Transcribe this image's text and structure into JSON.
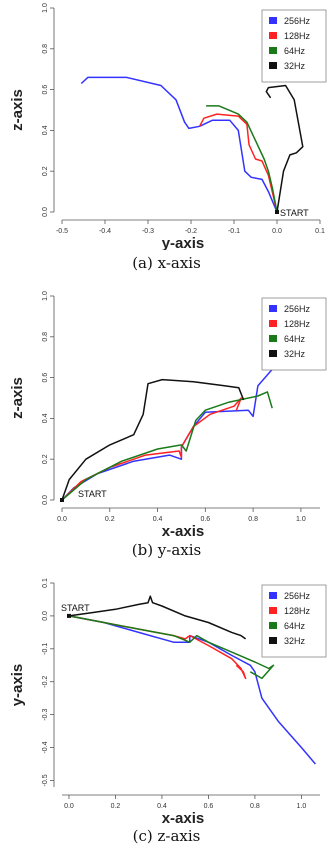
{
  "chart_data": [
    {
      "type": "line",
      "caption": "(a) x-axis",
      "xlabel": "y-axis",
      "ylabel": "z-axis",
      "xlim": [
        -0.5,
        0.1
      ],
      "ylim": [
        0.0,
        1.0
      ],
      "xticks": [
        "-0.5",
        "-0.4",
        "-0.3",
        "-0.2",
        "-0.1",
        "0.0",
        "0.1"
      ],
      "yticks": [
        "0.0",
        "0.2",
        "0.4",
        "0.6",
        "0.8",
        "1.0"
      ],
      "legend_position": "top-right",
      "annotation": {
        "text": "START",
        "x": 0.0,
        "y": 0.0
      },
      "series": [
        {
          "name": "256Hz",
          "color": "#3333ff",
          "x": [
            -0.455,
            -0.44,
            -0.35,
            -0.27,
            -0.235,
            -0.215,
            -0.205,
            -0.18,
            -0.15,
            -0.11,
            -0.09,
            -0.075,
            -0.06,
            -0.035,
            -0.02,
            0.0
          ],
          "y": [
            0.63,
            0.66,
            0.66,
            0.62,
            0.55,
            0.44,
            0.41,
            0.42,
            0.45,
            0.45,
            0.4,
            0.2,
            0.17,
            0.16,
            0.1,
            0.0
          ]
        },
        {
          "name": "128Hz",
          "color": "#ff2222",
          "x": [
            -0.18,
            -0.17,
            -0.14,
            -0.09,
            -0.07,
            -0.065,
            -0.05,
            -0.035,
            -0.02,
            0.0
          ],
          "y": [
            0.42,
            0.46,
            0.48,
            0.47,
            0.43,
            0.33,
            0.26,
            0.25,
            0.18,
            0.0
          ]
        },
        {
          "name": "64Hz",
          "color": "#1a7a1a",
          "x": [
            -0.165,
            -0.135,
            -0.09,
            -0.07,
            -0.05,
            -0.03,
            -0.02,
            -0.01,
            0.0
          ],
          "y": [
            0.52,
            0.52,
            0.48,
            0.44,
            0.35,
            0.26,
            0.2,
            0.11,
            0.0
          ]
        },
        {
          "name": "32Hz",
          "color": "#111111",
          "x": [
            -0.015,
            -0.025,
            -0.02,
            0.02,
            0.04,
            0.06,
            0.045,
            0.03,
            0.015,
            0.0
          ],
          "y": [
            0.56,
            0.59,
            0.61,
            0.62,
            0.55,
            0.32,
            0.29,
            0.28,
            0.2,
            0.0
          ]
        }
      ]
    },
    {
      "type": "line",
      "caption": "(b) y-axis",
      "xlabel": "x-axis",
      "ylabel": "z-axis",
      "xlim": [
        0.0,
        1.08
      ],
      "ylim": [
        0.0,
        1.0
      ],
      "xticks": [
        "0.0",
        "0.2",
        "0.4",
        "0.6",
        "0.8",
        "1.0"
      ],
      "yticks": [
        "0.0",
        "0.2",
        "0.4",
        "0.6",
        "0.8",
        "1.0"
      ],
      "legend_position": "top-right",
      "annotation": {
        "text": "START",
        "x": 0.0,
        "y": 0.0
      },
      "series": [
        {
          "name": "256Hz",
          "color": "#3333ff",
          "x": [
            0.0,
            0.05,
            0.15,
            0.3,
            0.45,
            0.5,
            0.5,
            0.55,
            0.6,
            0.78,
            0.8,
            0.82,
            0.88,
            1.0,
            1.06
          ],
          "y": [
            0.0,
            0.06,
            0.13,
            0.19,
            0.22,
            0.2,
            0.26,
            0.36,
            0.43,
            0.44,
            0.41,
            0.56,
            0.64,
            0.67,
            0.66
          ]
        },
        {
          "name": "128Hz",
          "color": "#ff2222",
          "x": [
            0.0,
            0.08,
            0.2,
            0.35,
            0.49,
            0.5,
            0.5,
            0.55,
            0.62,
            0.72,
            0.75,
            0.73
          ],
          "y": [
            0.0,
            0.09,
            0.16,
            0.22,
            0.24,
            0.21,
            0.26,
            0.36,
            0.42,
            0.46,
            0.5,
            0.44
          ]
        },
        {
          "name": "64Hz",
          "color": "#1a7a1a",
          "x": [
            0.0,
            0.1,
            0.25,
            0.4,
            0.5,
            0.52,
            0.56,
            0.6,
            0.7,
            0.82,
            0.86,
            0.88
          ],
          "y": [
            0.0,
            0.1,
            0.19,
            0.25,
            0.27,
            0.24,
            0.39,
            0.44,
            0.48,
            0.51,
            0.53,
            0.45
          ]
        },
        {
          "name": "32Hz",
          "color": "#111111",
          "x": [
            0.0,
            0.03,
            0.1,
            0.2,
            0.3,
            0.34,
            0.36,
            0.42,
            0.55,
            0.68,
            0.74,
            0.76
          ],
          "y": [
            0.0,
            0.1,
            0.2,
            0.27,
            0.32,
            0.42,
            0.57,
            0.59,
            0.58,
            0.56,
            0.55,
            0.49
          ]
        }
      ]
    },
    {
      "type": "line",
      "caption": "(c) z-axis",
      "xlabel": "x-axis",
      "ylabel": "y-axis",
      "xlim": [
        -0.03,
        1.08
      ],
      "ylim": [
        -0.52,
        0.1
      ],
      "xticks": [
        "0.0",
        "0.2",
        "0.4",
        "0.6",
        "0.8",
        "1.0"
      ],
      "yticks": [
        "-0.5",
        "-0.4",
        "-0.3",
        "-0.2",
        "-0.1",
        "0.0",
        "0.1"
      ],
      "legend_position": "top-right",
      "annotation": {
        "text": "START",
        "x": 0.0,
        "y": 0.0
      },
      "series": [
        {
          "name": "256Hz",
          "color": "#3333ff",
          "x": [
            0.0,
            0.15,
            0.3,
            0.45,
            0.52,
            0.52,
            0.6,
            0.7,
            0.78,
            0.8,
            0.83,
            0.9,
            1.0,
            1.06
          ],
          "y": [
            0.0,
            -0.02,
            -0.05,
            -0.08,
            -0.08,
            -0.06,
            -0.08,
            -0.12,
            -0.15,
            -0.17,
            -0.25,
            -0.32,
            -0.4,
            -0.45
          ]
        },
        {
          "name": "128Hz",
          "color": "#ff2222",
          "x": [
            0.0,
            0.15,
            0.3,
            0.45,
            0.5,
            0.52,
            0.6,
            0.7,
            0.74,
            0.76,
            0.75,
            0.72
          ],
          "y": [
            0.0,
            -0.02,
            -0.04,
            -0.06,
            -0.07,
            -0.06,
            -0.09,
            -0.13,
            -0.16,
            -0.19,
            -0.17,
            -0.15
          ]
        },
        {
          "name": "64Hz",
          "color": "#1a7a1a",
          "x": [
            0.0,
            0.15,
            0.3,
            0.45,
            0.52,
            0.55,
            0.6,
            0.7,
            0.8,
            0.86,
            0.88,
            0.83,
            0.78
          ],
          "y": [
            0.0,
            -0.02,
            -0.04,
            -0.06,
            -0.08,
            -0.06,
            -0.08,
            -0.11,
            -0.14,
            -0.16,
            -0.15,
            -0.19,
            -0.17
          ]
        },
        {
          "name": "32Hz",
          "color": "#111111",
          "x": [
            0.0,
            0.1,
            0.2,
            0.3,
            0.34,
            0.35,
            0.36,
            0.4,
            0.5,
            0.6,
            0.7,
            0.74,
            0.76
          ],
          "y": [
            0.0,
            0.01,
            0.02,
            0.035,
            0.04,
            0.06,
            0.04,
            0.03,
            0.0,
            -0.02,
            -0.05,
            -0.06,
            -0.07
          ]
        }
      ]
    }
  ]
}
